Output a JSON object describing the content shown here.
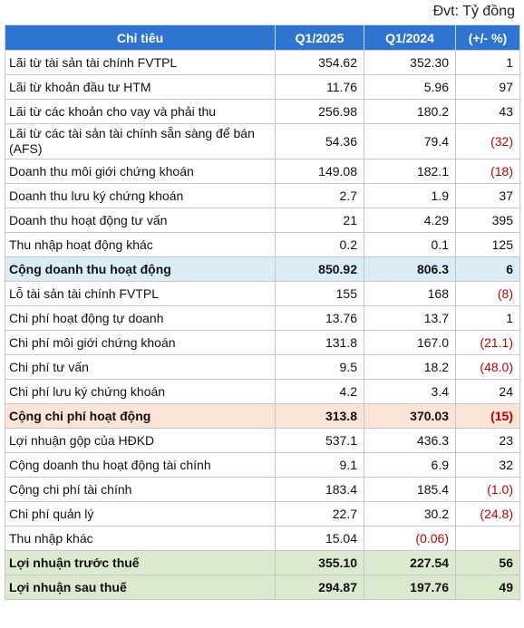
{
  "unit_label": "Đvt: Tỷ đồng",
  "headers": [
    "Chỉ tiêu",
    "Q1/2025",
    "Q1/2024",
    "(+/- %)"
  ],
  "rows": [
    {
      "name": "Lãi từ tài sản tài chính FVTPL",
      "q1_2025": "354.62",
      "q1_2024": "352.30",
      "change": "1",
      "style": "",
      "neg": [
        false,
        false,
        false
      ]
    },
    {
      "name": "Lãi từ khoản đầu tư HTM",
      "q1_2025": "11.76",
      "q1_2024": "5.96",
      "change": "97",
      "style": "",
      "neg": [
        false,
        false,
        false
      ]
    },
    {
      "name": "Lãi từ các khoản cho vay và phải thu",
      "q1_2025": "256.98",
      "q1_2024": "180.2",
      "change": "43",
      "style": "",
      "neg": [
        false,
        false,
        false
      ]
    },
    {
      "name": "Lãi từ các tài sản tài chính sẵn sàng để bán (AFS)",
      "q1_2025": "54.36",
      "q1_2024": "79.4",
      "change": "(32)",
      "style": "tall",
      "neg": [
        false,
        false,
        true
      ]
    },
    {
      "name": "Doanh thu môi giới chứng khoán",
      "q1_2025": "149.08",
      "q1_2024": "182.1",
      "change": "(18)",
      "style": "",
      "neg": [
        false,
        false,
        true
      ]
    },
    {
      "name": "Doanh thu lưu ký chứng khoán",
      "q1_2025": "2.7",
      "q1_2024": "1.9",
      "change": "37",
      "style": "",
      "neg": [
        false,
        false,
        false
      ]
    },
    {
      "name": "Doanh thu hoạt động tư vấn",
      "q1_2025": "21",
      "q1_2024": "4.29",
      "change": "395",
      "style": "",
      "neg": [
        false,
        false,
        false
      ]
    },
    {
      "name": "Thu nhập hoạt động khác",
      "q1_2025": "0.2",
      "q1_2024": "0.1",
      "change": "125",
      "style": "",
      "neg": [
        false,
        false,
        false
      ]
    },
    {
      "name": "Cộng doanh thu hoạt động",
      "q1_2025": "850.92",
      "q1_2024": "806.3",
      "change": "6",
      "style": "sum-blue",
      "neg": [
        false,
        false,
        false
      ]
    },
    {
      "name": "Lỗ tài sản tài chính FVTPL",
      "q1_2025": "155",
      "q1_2024": "168",
      "change": "(8)",
      "style": "",
      "neg": [
        false,
        false,
        true
      ]
    },
    {
      "name": "Chi phí hoạt động tự doanh",
      "q1_2025": "13.76",
      "q1_2024": "13.7",
      "change": "1",
      "style": "",
      "neg": [
        false,
        false,
        false
      ]
    },
    {
      "name": "Chi phí môi giới chứng khoán",
      "q1_2025": "131.8",
      "q1_2024": "167.0",
      "change": "(21.1)",
      "style": "",
      "neg": [
        false,
        false,
        true
      ]
    },
    {
      "name": "Chi phí tư vấn",
      "q1_2025": "9.5",
      "q1_2024": "18.2",
      "change": "(48.0)",
      "style": "",
      "neg": [
        false,
        false,
        true
      ]
    },
    {
      "name": "Chi phí lưu ký chứng khoán",
      "q1_2025": "4.2",
      "q1_2024": "3.4",
      "change": "24",
      "style": "",
      "neg": [
        false,
        false,
        false
      ]
    },
    {
      "name": "Cộng chi phí hoạt động",
      "q1_2025": "313.8",
      "q1_2024": "370.03",
      "change": "(15)",
      "style": "sum-peach",
      "neg": [
        false,
        false,
        true
      ]
    },
    {
      "name": "Lợi nhuận gộp của HĐKD",
      "q1_2025": "537.1",
      "q1_2024": "436.3",
      "change": "23",
      "style": "",
      "neg": [
        false,
        false,
        false
      ]
    },
    {
      "name": "Cộng doanh thu hoạt động tài chính",
      "q1_2025": "9.1",
      "q1_2024": "6.9",
      "change": "32",
      "style": "",
      "neg": [
        false,
        false,
        false
      ]
    },
    {
      "name": "Cộng chi phí tài chính",
      "q1_2025": "183.4",
      "q1_2024": "185.4",
      "change": "(1.0)",
      "style": "",
      "neg": [
        false,
        false,
        true
      ]
    },
    {
      "name": "Chi phí quản lý",
      "q1_2025": "22.7",
      "q1_2024": "30.2",
      "change": "(24.8)",
      "style": "",
      "neg": [
        false,
        false,
        true
      ]
    },
    {
      "name": "Thu nhập khác",
      "q1_2025": "15.04",
      "q1_2024": "(0.06)",
      "change": "",
      "style": "",
      "neg": [
        false,
        true,
        false
      ]
    },
    {
      "name": "Lợi nhuận trước thuế",
      "q1_2025": "355.10",
      "q1_2024": "227.54",
      "change": "56",
      "style": "sum-green",
      "neg": [
        false,
        false,
        false
      ]
    },
    {
      "name": "Lợi nhuận sau thuế",
      "q1_2025": "294.87",
      "q1_2024": "197.76",
      "change": "49",
      "style": "sum-green",
      "neg": [
        false,
        false,
        false
      ]
    }
  ],
  "colors": {
    "header_bg": "#2f74d0",
    "negative_text": "#c00000",
    "sum_blue": "#daedf5",
    "sum_peach": "#fbe4d6",
    "sum_green": "#dde9cf"
  }
}
